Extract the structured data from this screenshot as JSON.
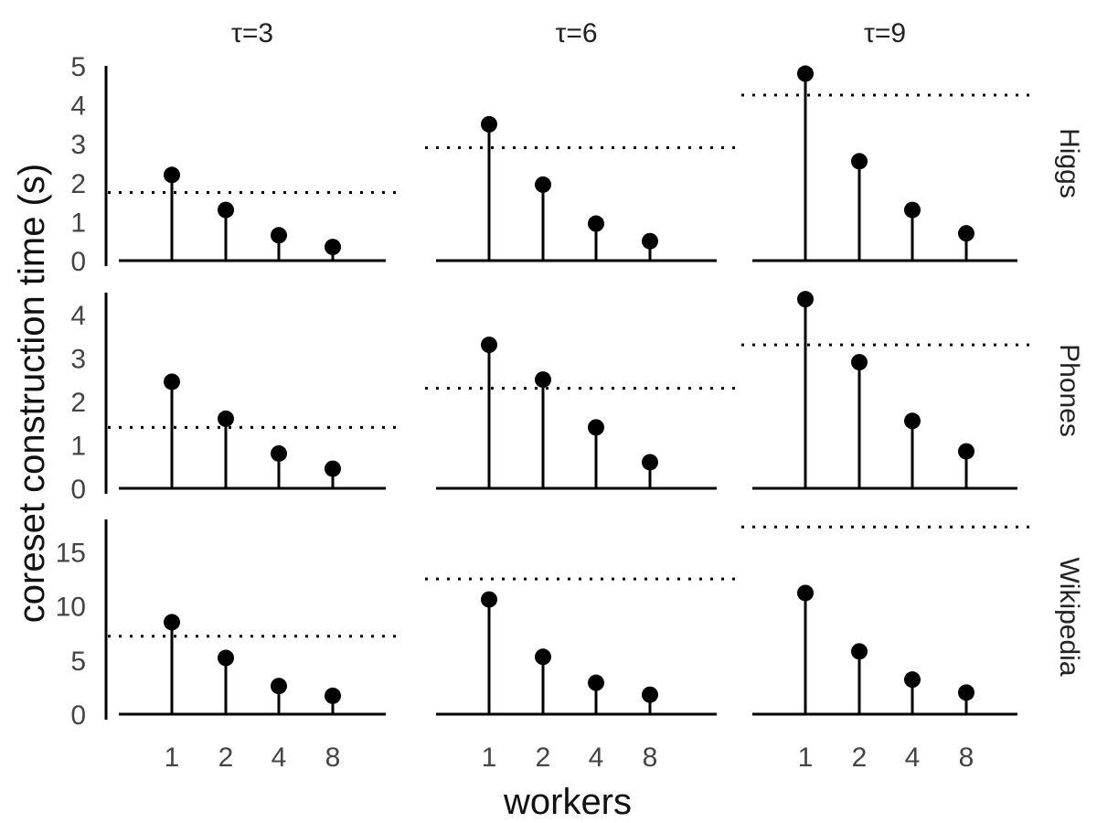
{
  "chart_data": {
    "type": "scatter",
    "style": "lollipop",
    "xlabel": "workers",
    "ylabel": "coreset construction time (s)",
    "x": [
      "1",
      "2",
      "4",
      "8"
    ],
    "columns": [
      "τ=3",
      "τ=6",
      "τ=9"
    ],
    "rows": [
      "Higgs",
      "Phones",
      "Wikipedia"
    ],
    "row_ylim": [
      [
        0,
        5
      ],
      [
        0,
        4.5
      ],
      [
        0,
        18
      ]
    ],
    "row_yticks": [
      [
        0,
        1,
        2,
        3,
        4,
        5
      ],
      [
        0,
        1,
        2,
        3,
        4
      ],
      [
        0,
        5,
        10,
        15
      ]
    ],
    "grid": false,
    "reference_line": "dotted",
    "panels": [
      {
        "row": "Higgs",
        "col": "τ=3",
        "values": [
          2.2,
          1.3,
          0.65,
          0.35
        ],
        "reference": 1.75
      },
      {
        "row": "Higgs",
        "col": "τ=6",
        "values": [
          3.5,
          1.95,
          0.95,
          0.5
        ],
        "reference": 2.9
      },
      {
        "row": "Higgs",
        "col": "τ=9",
        "values": [
          4.8,
          2.55,
          1.3,
          0.7
        ],
        "reference": 4.25
      },
      {
        "row": "Phones",
        "col": "τ=3",
        "values": [
          2.45,
          1.6,
          0.8,
          0.45
        ],
        "reference": 1.4
      },
      {
        "row": "Phones",
        "col": "τ=6",
        "values": [
          3.3,
          2.5,
          1.4,
          0.6
        ],
        "reference": 2.3
      },
      {
        "row": "Phones",
        "col": "τ=9",
        "values": [
          4.35,
          2.9,
          1.55,
          0.85
        ],
        "reference": 3.3
      },
      {
        "row": "Wikipedia",
        "col": "τ=3",
        "values": [
          8.5,
          5.2,
          2.6,
          1.7
        ],
        "reference": 7.2
      },
      {
        "row": "Wikipedia",
        "col": "τ=6",
        "values": [
          10.6,
          5.3,
          2.9,
          1.8
        ],
        "reference": 12.5
      },
      {
        "row": "Wikipedia",
        "col": "τ=9",
        "values": [
          11.2,
          5.8,
          3.2,
          2.0
        ],
        "reference": 17.3
      }
    ]
  }
}
